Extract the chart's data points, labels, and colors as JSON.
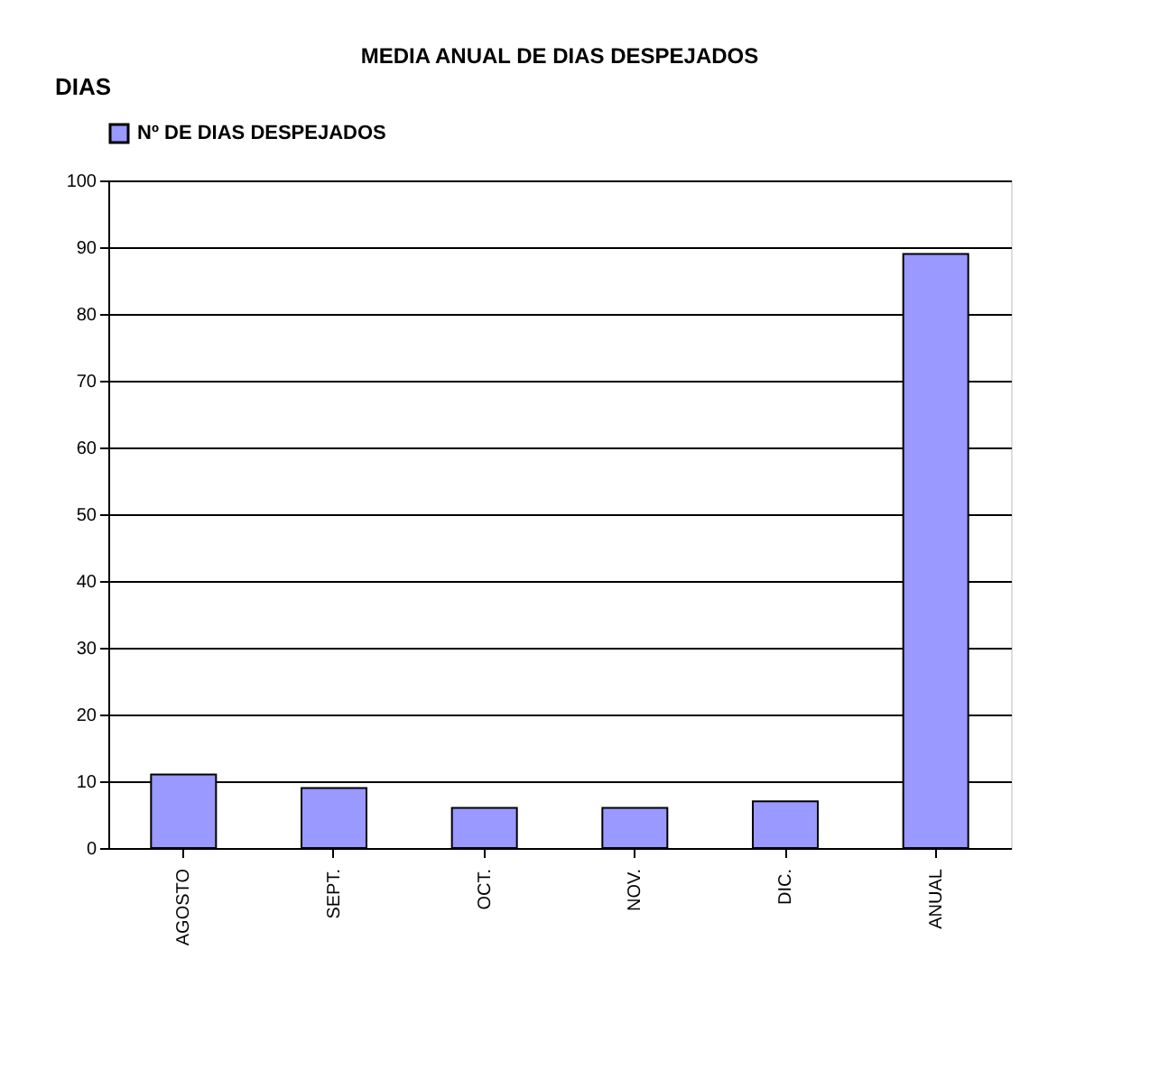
{
  "chart_data": {
    "type": "bar",
    "title": "MEDIA ANUAL DE DIAS DESPEJADOS",
    "ylabel": "DIAS",
    "categories": [
      "AGOSTO",
      "SEPT.",
      "OCT.",
      "NOV.",
      "DIC.",
      "ANUAL"
    ],
    "series": [
      {
        "name": "Nº DE DIAS DESPEJADOS",
        "color": "#9999ff",
        "values": [
          11,
          9,
          6,
          6,
          7,
          89
        ]
      }
    ],
    "ylim": [
      0,
      100
    ],
    "yticks": [
      0,
      10,
      20,
      30,
      40,
      50,
      60,
      70,
      80,
      90,
      100
    ],
    "grid": "y",
    "legend": "top"
  }
}
